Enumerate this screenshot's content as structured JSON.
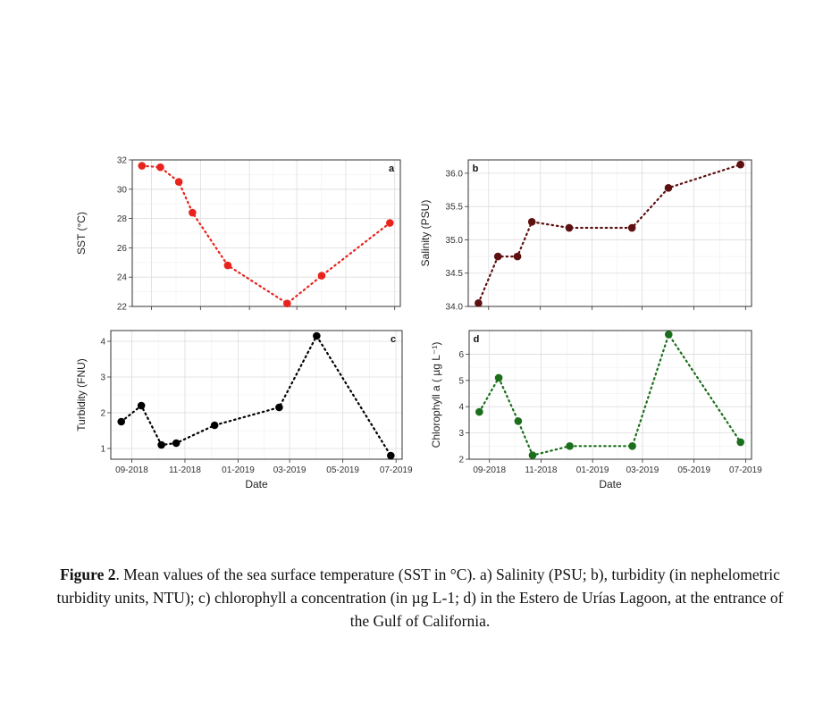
{
  "caption": {
    "label": "Figure 2",
    "text": ". Mean values of the sea surface temperature (SST in °C). a) Salinity (PSU; b), turbidity (in nephelometric turbidity units, NTU); c) chlorophyll a concentration (in µg L-1; d) in the Estero de Urías Lagoon, at the entrance of the Gulf of California."
  },
  "chart_data": [
    {
      "id": "a",
      "tag": "a",
      "type": "line",
      "ylabel": "SST (°C)",
      "xlabel": "",
      "color": "#e8231d",
      "x": [
        "2018-08-20",
        "2018-09-12",
        "2018-10-05",
        "2018-10-22",
        "2018-12-05",
        "2019-02-17",
        "2019-04-01",
        "2019-06-25"
      ],
      "y": [
        31.6,
        31.5,
        30.5,
        28.4,
        24.8,
        22.2,
        24.1,
        27.7
      ],
      "xticks": [
        "09-2018",
        "11-2018",
        "01-2019",
        "03-2019",
        "05-2019",
        "07-2019"
      ],
      "yticks": [
        "22",
        "24",
        "26",
        "28",
        "30",
        "32"
      ],
      "ylim": [
        22,
        32
      ],
      "grid": true
    },
    {
      "id": "b",
      "tag": "b",
      "type": "line",
      "ylabel": "Salinity (PSU)",
      "xlabel": "",
      "color": "#5e0f0f",
      "x": [
        "2018-08-20",
        "2018-09-12",
        "2018-10-05",
        "2018-10-22",
        "2018-12-05",
        "2019-02-17",
        "2019-04-01",
        "2019-06-25"
      ],
      "y": [
        34.05,
        34.75,
        34.75,
        35.27,
        35.18,
        35.18,
        35.78,
        36.13
      ],
      "xticks": [
        "09-2018",
        "11-2018",
        "01-2019",
        "03-2019",
        "05-2019",
        "07-2019"
      ],
      "yticks": [
        "34.0",
        "34.5",
        "35.0",
        "35.5",
        "36.0"
      ],
      "ylim": [
        34.0,
        36.2
      ],
      "grid": true
    },
    {
      "id": "c",
      "tag": "c",
      "type": "line",
      "ylabel": "Turbidity (FNU)",
      "xlabel": "Date",
      "color": "#000000",
      "x": [
        "2018-08-20",
        "2018-09-12",
        "2018-10-05",
        "2018-10-22",
        "2018-12-05",
        "2019-02-17",
        "2019-04-01",
        "2019-06-25"
      ],
      "y": [
        1.75,
        2.2,
        1.1,
        1.15,
        1.65,
        2.15,
        4.15,
        0.8
      ],
      "xticks": [
        "09-2018",
        "11-2018",
        "01-2019",
        "03-2019",
        "05-2019",
        "07-2019"
      ],
      "yticks": [
        "1",
        "2",
        "3",
        "4"
      ],
      "ylim": [
        0.7,
        4.3
      ],
      "grid": true
    },
    {
      "id": "d",
      "tag": "d",
      "type": "line",
      "ylabel": "Chlorophyll a ( µg L⁻¹)",
      "xlabel": "Date",
      "color": "#1b6e1b",
      "x": [
        "2018-08-20",
        "2018-09-12",
        "2018-10-05",
        "2018-10-22",
        "2018-12-05",
        "2019-02-17",
        "2019-04-01",
        "2019-06-25"
      ],
      "y": [
        3.8,
        5.1,
        3.45,
        2.15,
        2.5,
        2.5,
        6.75,
        2.65
      ],
      "xticks": [
        "09-2018",
        "11-2018",
        "01-2019",
        "03-2019",
        "05-2019",
        "07-2019"
      ],
      "yticks": [
        "2",
        "3",
        "4",
        "5",
        "6"
      ],
      "ylim": [
        2.0,
        6.9
      ],
      "grid": true
    }
  ]
}
